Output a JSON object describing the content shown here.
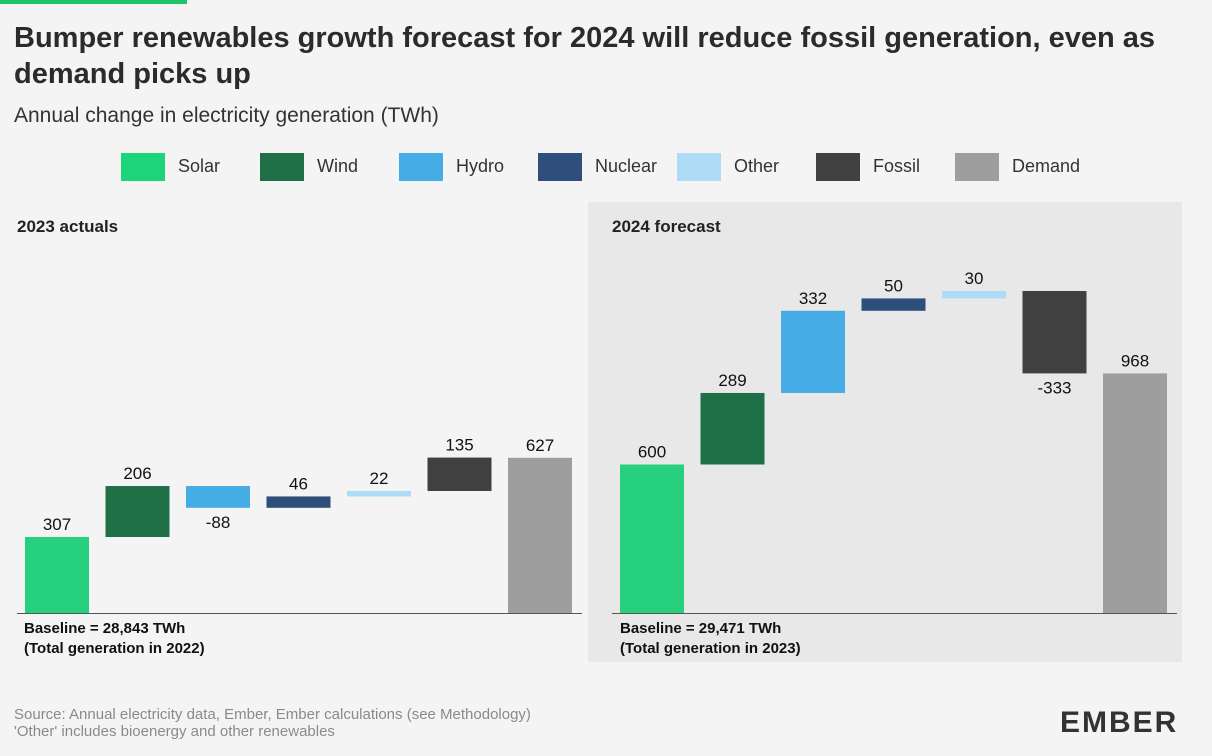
{
  "title": "Bumper renewables growth forecast for 2024 will reduce fossil generation, even as demand picks up",
  "subtitle": "Annual change in electricity generation (TWh)",
  "legend": [
    {
      "label": "Solar",
      "color": "#1ed47a"
    },
    {
      "label": "Wind",
      "color": "#1f6f47"
    },
    {
      "label": "Hydro",
      "color": "#46ace6"
    },
    {
      "label": "Nuclear",
      "color": "#2e4f7c"
    },
    {
      "label": "Other",
      "color": "#aedcf6"
    },
    {
      "label": "Fossil",
      "color": "#404040"
    },
    {
      "label": "Demand",
      "color": "#9e9e9e"
    }
  ],
  "panels": {
    "left": {
      "title": "2023 actuals",
      "baseline_line1": "Baseline = 28,843 TWh",
      "baseline_line2": "(Total generation in 2022)"
    },
    "right": {
      "title": "2024 forecast",
      "baseline_line1": "Baseline = 29,471 TWh",
      "baseline_line2": "(Total generation in 2023)"
    }
  },
  "chart_data": [
    {
      "type": "bar",
      "title": "2023 actuals",
      "categories": [
        "Solar",
        "Wind",
        "Hydro",
        "Nuclear",
        "Other",
        "Fossil",
        "Demand"
      ],
      "values": [
        307,
        206,
        -88,
        46,
        22,
        135,
        627
      ],
      "labels": [
        "307",
        "206",
        "-88",
        "46",
        "22",
        "135",
        "627"
      ],
      "colors": [
        "#26d07c",
        "#1f6f47",
        "#46ace6",
        "#2e4f7c",
        "#aedcf6",
        "#404040",
        "#9e9e9e"
      ]
    },
    {
      "type": "bar",
      "title": "2024 forecast",
      "categories": [
        "Solar",
        "Wind",
        "Hydro",
        "Nuclear",
        "Other",
        "Fossil",
        "Demand"
      ],
      "values": [
        600,
        289,
        332,
        50,
        30,
        -333,
        968
      ],
      "labels": [
        "600",
        "289",
        "332",
        "50",
        "30",
        "-333",
        "968"
      ],
      "colors": [
        "#26d07c",
        "#1f6f47",
        "#46ace6",
        "#2e4f7c",
        "#aedcf6",
        "#404040",
        "#9e9e9e"
      ]
    }
  ],
  "source": {
    "line1": "Source: Annual electricity data, Ember, Ember calculations (see Methodology)",
    "line2": "'Other' includes bioenergy and other renewables"
  },
  "logo": "EMBER"
}
